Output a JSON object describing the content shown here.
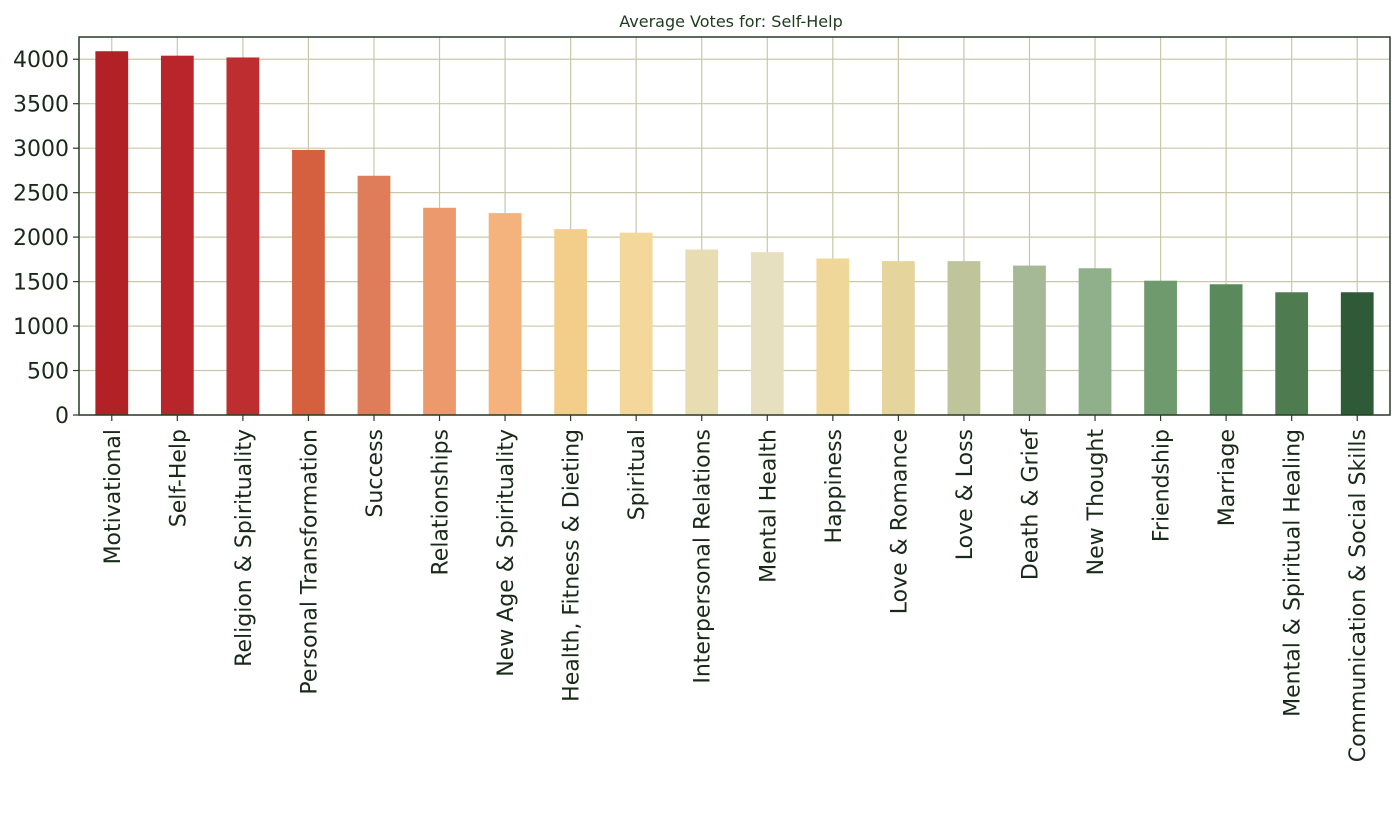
{
  "chart_data": {
    "type": "bar",
    "title": "Average Votes for: Self-Help",
    "xlabel": "",
    "ylabel": "",
    "ylim": [
      0,
      4250
    ],
    "yticks": [
      0,
      500,
      1000,
      1500,
      2000,
      2500,
      3000,
      3500,
      4000
    ],
    "grid": true,
    "categories": [
      "Motivational",
      "Self-Help",
      "Religion & Spirituality",
      "Personal Transformation",
      "Success",
      "Relationships",
      "New Age & Spirituality",
      "Health, Fitness & Dieting",
      "Spiritual",
      "Interpersonal Relations",
      "Mental Health",
      "Happiness",
      "Love & Romance",
      "Love & Loss",
      "Death & Grief",
      "New Thought",
      "Friendship",
      "Marriage",
      "Mental & Spiritual Healing",
      "Communication & Social Skills"
    ],
    "values": [
      4090,
      4040,
      4020,
      2980,
      2690,
      2330,
      2270,
      2090,
      2050,
      1860,
      1830,
      1760,
      1730,
      1730,
      1680,
      1650,
      1510,
      1470,
      1380,
      1380
    ],
    "colors": [
      "#b22126",
      "#b8262c",
      "#be2e30",
      "#d4603f",
      "#df7c5a",
      "#ec9a6d",
      "#f4b27c",
      "#f2ce8a",
      "#f3d79b",
      "#e8dcb2",
      "#e6dfc0",
      "#efd79a",
      "#e5d59d",
      "#bfc49b",
      "#a6b996",
      "#8fb08a",
      "#6f9a6e",
      "#5a8a5c",
      "#4e7c50",
      "#2e5a37"
    ]
  }
}
